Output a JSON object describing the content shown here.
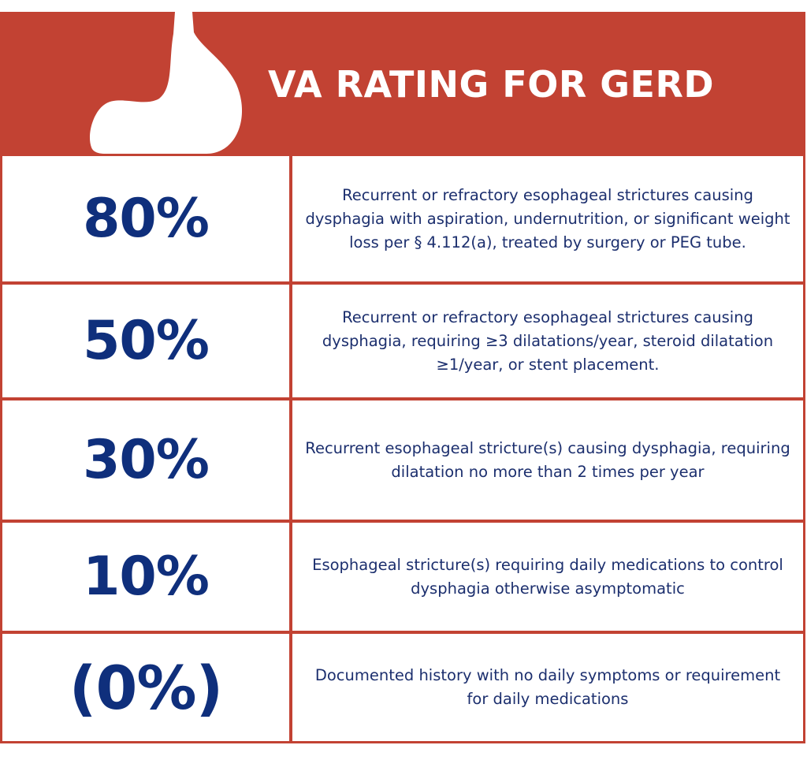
{
  "header": {
    "title": "VA RATING FOR GERD",
    "logo_icon": "stomach-icon",
    "background_color": "#c24233"
  },
  "rows": [
    {
      "rating": "80%",
      "description": "Recurrent or refractory esophageal strictures causing dysphagia with aspiration, undernutrition, or significant weight loss per § 4.112(a), treated by surgery or PEG tube."
    },
    {
      "rating": "50%",
      "description": "Recurrent or refractory esophageal strictures causing dysphagia, requiring ≥3 dilatations/year, steroid dilatation ≥1/year, or stent placement."
    },
    {
      "rating": "30%",
      "description": "Recurrent esophageal stricture(s) causing dysphagia, requiring dilatation no more than 2 times per year"
    },
    {
      "rating": "10%",
      "description": "Esophageal stricture(s) requiring daily medications to control dysphagia otherwise asymptomatic"
    },
    {
      "rating": "(0%)",
      "description": "Documented history with no daily symptoms or requirement for daily medications"
    }
  ],
  "colors": {
    "rating_text": "#0f2f7c",
    "description_text": "#1c2f6e",
    "border": "#c24233"
  }
}
